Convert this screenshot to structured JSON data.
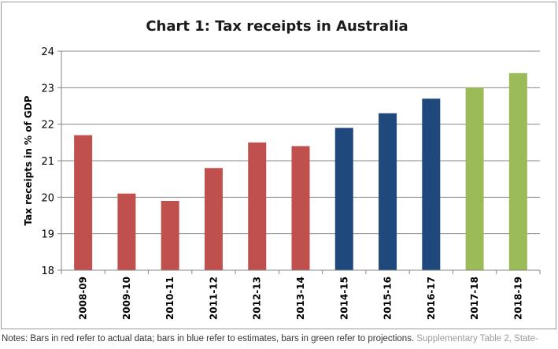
{
  "notes": {
    "text": "Notes: Bars in red refer to actual data; bars in blue refer to estimates, bars in green refer to projections.",
    "source": "Supplementary Table 2, State-"
  },
  "chart_data": {
    "type": "bar",
    "title": "Chart 1: Tax receipts in Australia",
    "xlabel": "",
    "ylabel": "Tax receipts in % of GDP",
    "ylim": [
      18,
      24
    ],
    "yticks": [
      18,
      19,
      20,
      21,
      22,
      23,
      24
    ],
    "grid": true,
    "categories": [
      "2008-09",
      "2009-10",
      "2010-11",
      "2011-12",
      "2012-13",
      "2013-14",
      "2014-15",
      "2015-16",
      "2016-17",
      "2017-18",
      "2018-19"
    ],
    "values": [
      21.7,
      20.1,
      19.9,
      20.8,
      21.5,
      21.4,
      21.9,
      22.3,
      22.7,
      23.0,
      23.4
    ],
    "bar_colors": [
      "#c0504d",
      "#c0504d",
      "#c0504d",
      "#c0504d",
      "#c0504d",
      "#c0504d",
      "#1f497d",
      "#1f497d",
      "#1f497d",
      "#9bbb59",
      "#9bbb59"
    ]
  }
}
